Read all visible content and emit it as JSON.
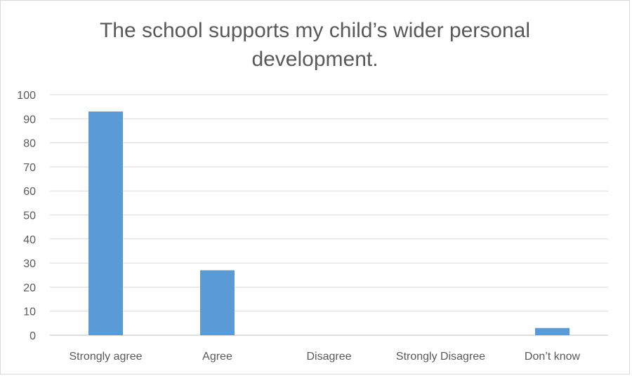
{
  "chart_data": {
    "type": "bar",
    "title": "The school supports my child’s wider personal development.",
    "categories": [
      "Strongly agree",
      "Agree",
      "Disagree",
      "Strongly Disagree",
      "Don’t know"
    ],
    "values": [
      93,
      27,
      0,
      0,
      3
    ],
    "ylim": [
      0,
      100
    ],
    "yticks": [
      0,
      10,
      20,
      30,
      40,
      50,
      60,
      70,
      80,
      90,
      100
    ],
    "grid": true,
    "legend": "none",
    "bar_color": "#5b9bd5",
    "grid_color": "#d9d9d9",
    "text_color": "#595959"
  }
}
